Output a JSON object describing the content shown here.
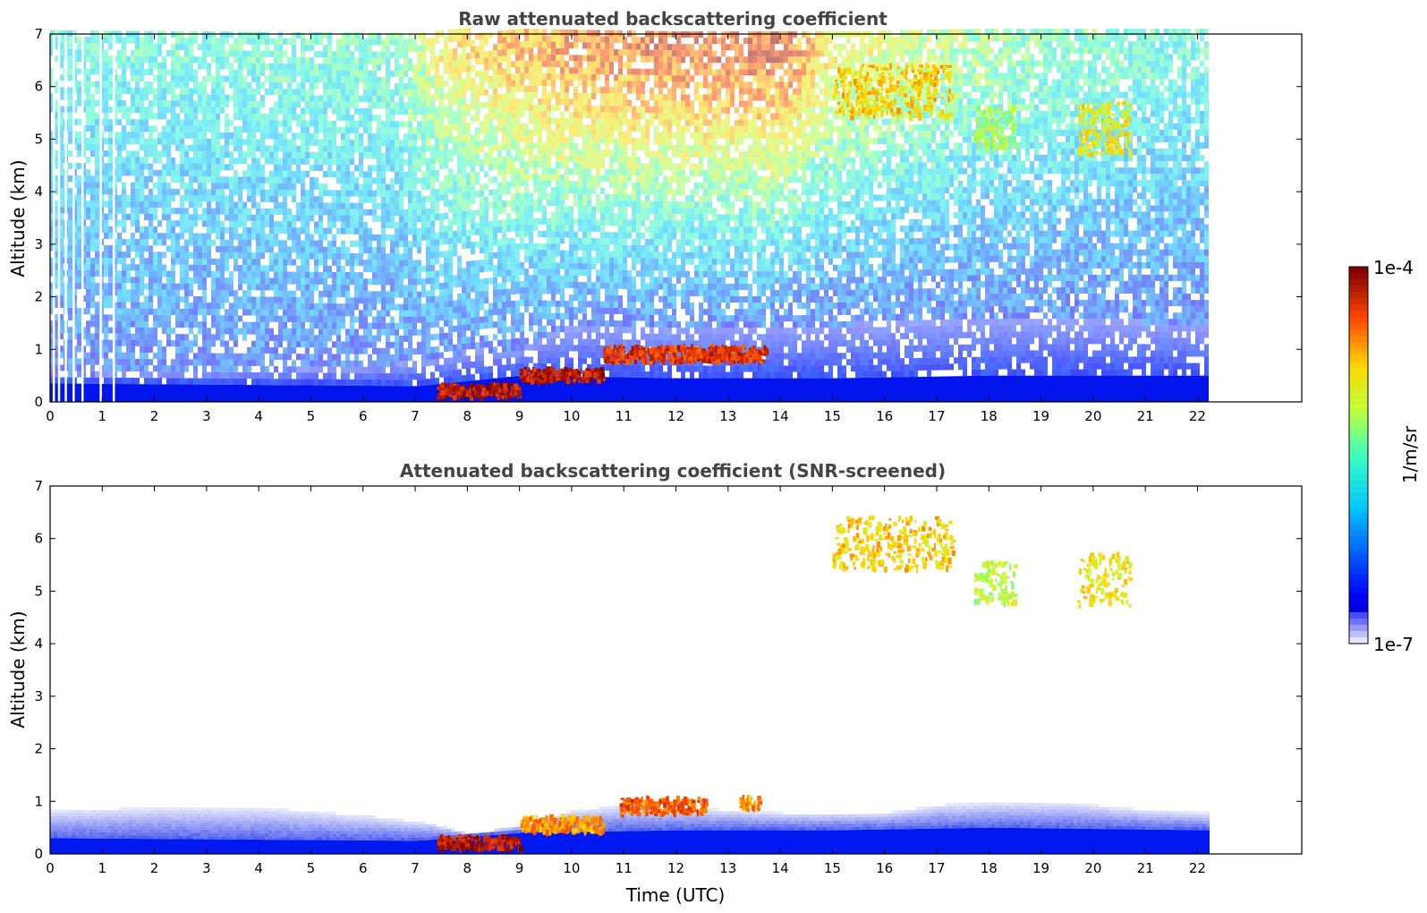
{
  "chart_data": [
    {
      "type": "heatmap",
      "title": "Raw attenuated backscattering coefficient",
      "xlabel": "",
      "ylabel": "Altitude (km)",
      "xlim": [
        0,
        24
      ],
      "ylim": [
        0,
        7
      ],
      "x_ticks": [
        0,
        1,
        2,
        3,
        4,
        5,
        6,
        7,
        8,
        9,
        10,
        11,
        12,
        13,
        14,
        15,
        16,
        17,
        18,
        19,
        20,
        21,
        22
      ],
      "y_ticks": [
        0,
        1,
        2,
        3,
        4,
        5,
        6,
        7
      ],
      "data_end_time": 22.2,
      "background": [
        {
          "t": 0,
          "top": 0.45
        },
        {
          "t": 3,
          "top": 0.5
        },
        {
          "t": 6,
          "top": 0.6
        },
        {
          "t": 7.3,
          "top": 0.75
        },
        {
          "t": 8,
          "top": 0.9
        },
        {
          "t": 9,
          "top": 0.95
        },
        {
          "t": 10,
          "top": 1.4
        },
        {
          "t": 12,
          "top": 1.4
        },
        {
          "t": 15,
          "top": 1.4
        },
        {
          "t": 16,
          "top": 1.45
        },
        {
          "t": 18,
          "top": 1.5
        },
        {
          "t": 20,
          "top": 1.5
        },
        {
          "t": 22.2,
          "top": 1.4
        }
      ],
      "dense_layer": [
        {
          "t": 0,
          "top": 0.35
        },
        {
          "t": 7,
          "top": 0.3
        },
        {
          "t": 9,
          "top": 0.5
        },
        {
          "t": 12,
          "top": 0.45
        },
        {
          "t": 15,
          "top": 0.45
        },
        {
          "t": 18,
          "top": 0.5
        },
        {
          "t": 22.2,
          "top": 0.5
        }
      ],
      "upper_signal": [
        {
          "t": 0,
          "level": 0.45
        },
        {
          "t": 6.5,
          "level": 0.5
        },
        {
          "t": 7.5,
          "level": 0.7
        },
        {
          "t": 10,
          "level": 0.85
        },
        {
          "t": 14,
          "level": 0.9
        },
        {
          "t": 15,
          "level": 0.7
        },
        {
          "t": 18,
          "level": 0.55
        },
        {
          "t": 22.2,
          "level": 0.45
        }
      ],
      "gaps": [
        0.05,
        0.15,
        0.28,
        0.43,
        0.6,
        0.95,
        1.2
      ],
      "features": [
        {
          "t0": 7.4,
          "t1": 9.0,
          "alt": 0.2,
          "thick": 0.12,
          "level": 0.95
        },
        {
          "t0": 9.0,
          "t1": 10.6,
          "alt": 0.5,
          "thick": 0.12,
          "level": 0.95
        },
        {
          "t0": 10.6,
          "t1": 13.7,
          "alt": 0.9,
          "thick": 0.15,
          "level": 0.9
        },
        {
          "t0": 15.0,
          "t1": 17.3,
          "alt": 5.9,
          "thick": 0.5,
          "level": 0.74
        },
        {
          "t0": 17.7,
          "t1": 18.5,
          "alt": 5.2,
          "thick": 0.4,
          "level": 0.62
        },
        {
          "t0": 19.7,
          "t1": 20.7,
          "alt": 5.2,
          "thick": 0.5,
          "level": 0.7
        }
      ]
    },
    {
      "type": "heatmap",
      "title": "Attenuated backscattering coefficient (SNR-screened)",
      "xlabel": "Time (UTC)",
      "ylabel": "Altitude (km)",
      "xlim": [
        0,
        24
      ],
      "ylim": [
        0,
        7
      ],
      "x_ticks": [
        0,
        1,
        2,
        3,
        4,
        5,
        6,
        7,
        8,
        9,
        10,
        11,
        12,
        13,
        14,
        15,
        16,
        17,
        18,
        19,
        20,
        21,
        22
      ],
      "y_ticks": [
        0,
        1,
        2,
        3,
        4,
        5,
        6,
        7
      ],
      "data_end_time": 22.2,
      "boundary_layer": [
        {
          "t": 0,
          "top": 0.8
        },
        {
          "t": 2,
          "top": 0.85
        },
        {
          "t": 4,
          "top": 0.85
        },
        {
          "t": 6,
          "top": 0.7
        },
        {
          "t": 7.3,
          "top": 0.55
        },
        {
          "t": 8,
          "top": 0.35
        },
        {
          "t": 9,
          "top": 0.5
        },
        {
          "t": 10,
          "top": 0.8
        },
        {
          "t": 11,
          "top": 0.9
        },
        {
          "t": 12,
          "top": 0.85
        },
        {
          "t": 14,
          "top": 0.75
        },
        {
          "t": 16,
          "top": 0.75
        },
        {
          "t": 17,
          "top": 0.9
        },
        {
          "t": 18,
          "top": 0.95
        },
        {
          "t": 19.5,
          "top": 0.95
        },
        {
          "t": 21,
          "top": 0.8
        },
        {
          "t": 22.2,
          "top": 0.75
        }
      ],
      "dense_layer": [
        {
          "t": 0,
          "top": 0.3
        },
        {
          "t": 7,
          "top": 0.25
        },
        {
          "t": 9,
          "top": 0.4
        },
        {
          "t": 12,
          "top": 0.45
        },
        {
          "t": 15,
          "top": 0.45
        },
        {
          "t": 18,
          "top": 0.5
        },
        {
          "t": 22.2,
          "top": 0.45
        }
      ],
      "features": [
        {
          "t0": 7.4,
          "t1": 9.0,
          "alt": 0.2,
          "thick": 0.12,
          "level": 0.95
        },
        {
          "t0": 9.0,
          "t1": 10.6,
          "alt": 0.55,
          "thick": 0.15,
          "level": 0.8
        },
        {
          "t0": 10.9,
          "t1": 12.6,
          "alt": 0.9,
          "thick": 0.15,
          "level": 0.85
        },
        {
          "t0": 13.2,
          "t1": 13.6,
          "alt": 0.95,
          "thick": 0.12,
          "level": 0.8
        },
        {
          "t0": 15.0,
          "t1": 17.3,
          "alt": 5.9,
          "thick": 0.5,
          "level": 0.74
        },
        {
          "t0": 17.7,
          "t1": 18.5,
          "alt": 5.15,
          "thick": 0.4,
          "level": 0.62
        },
        {
          "t0": 19.7,
          "t1": 20.7,
          "alt": 5.2,
          "thick": 0.5,
          "level": 0.7
        }
      ]
    }
  ],
  "colorbar": {
    "label": "1/m/sr",
    "max_label": "1e-4",
    "min_label": "1e-7",
    "colormap": "jet",
    "scale": "log",
    "range": [
      "1e-7",
      "1e-4"
    ]
  }
}
